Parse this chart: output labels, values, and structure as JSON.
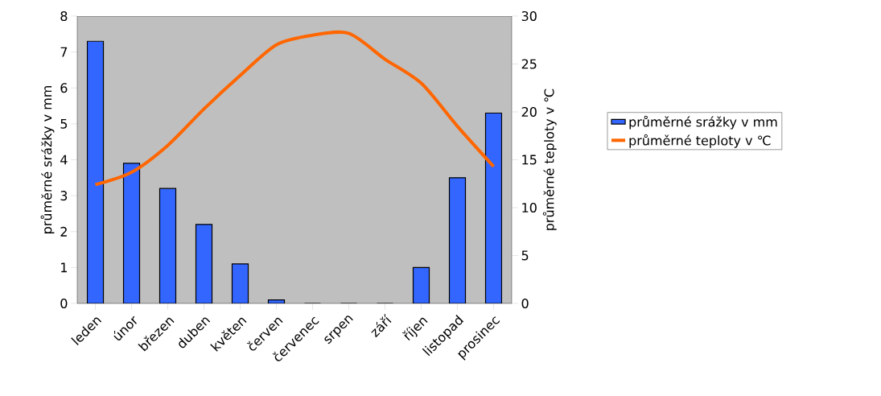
{
  "chart_data": {
    "type": "bar",
    "categories": [
      "leden",
      "únor",
      "březen",
      "duben",
      "květen",
      "červen",
      "červenec",
      "srpen",
      "září",
      "říjen",
      "listopad",
      "prosinec"
    ],
    "ylabel": "průměrné srážky v mm",
    "y2label": "průměrné teploty v ℃",
    "ylim": [
      0,
      8
    ],
    "yticks": [
      0,
      1,
      2,
      3,
      4,
      5,
      6,
      7,
      8
    ],
    "y2lim": [
      0,
      30
    ],
    "y2ticks": [
      0,
      5,
      10,
      15,
      20,
      25,
      30
    ],
    "legend": "right",
    "grid": false,
    "series": [
      {
        "name": "průměrné srážky v mm",
        "color": "#3366ff",
        "values": [
          7.3,
          3.9,
          3.2,
          2.2,
          1.1,
          0.1,
          0,
          0,
          0,
          1.0,
          3.5,
          5.3
        ]
      },
      {
        "name": "průměrné teploty v ℃",
        "type": "line",
        "axis": "y2",
        "color": "#ff6600",
        "values": [
          12.4,
          13.7,
          16.5,
          20.3,
          23.8,
          27.0,
          28.0,
          28.2,
          25.5,
          23.0,
          18.5,
          14.3
        ]
      }
    ]
  }
}
